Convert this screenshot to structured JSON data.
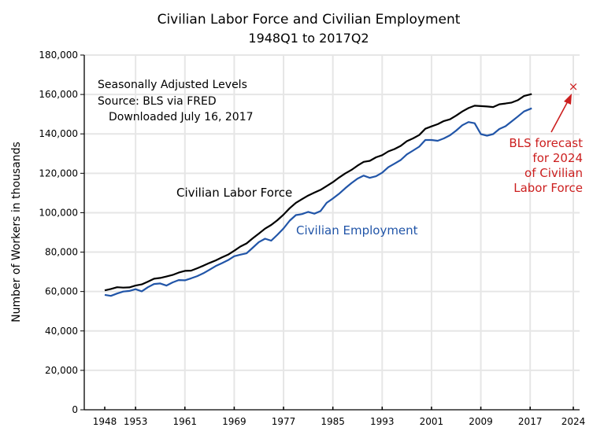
{
  "chart_data": {
    "type": "line",
    "title": "Civilian Labor Force and Civilian Employment",
    "subtitle": "1948Q1 to 2017Q2",
    "xlabel": "",
    "ylabel": "Number of Workers in thousands",
    "xlim": [
      1946,
      2025
    ],
    "ylim": [
      0,
      180000
    ],
    "grid": true,
    "yticks": [
      0,
      20000,
      40000,
      60000,
      80000,
      100000,
      120000,
      140000,
      160000,
      180000
    ],
    "ytick_labels": [
      "0",
      "20,000",
      "40,000",
      "60,000",
      "80,000",
      "100,000",
      "120,000",
      "140,000",
      "160,000",
      "180,000"
    ],
    "xticks": [
      1948,
      1953,
      1961,
      1969,
      1977,
      1985,
      1993,
      2001,
      2009,
      2017,
      2024
    ],
    "xtick_labels": [
      "1948",
      "1953",
      "1961",
      "1969",
      "1977",
      "1985",
      "1993",
      "2001",
      "2009",
      "2017",
      "2024"
    ],
    "notes": [
      "Seasonally Adjusted Levels",
      "Source:  BLS via FRED",
      "Downloaded July 16, 2017"
    ],
    "series": [
      {
        "name": "Civilian Labor Force",
        "color": "#000000",
        "x": [
          1948,
          1949,
          1950,
          1951,
          1952,
          1953,
          1954,
          1955,
          1956,
          1957,
          1958,
          1959,
          1960,
          1961,
          1962,
          1963,
          1964,
          1965,
          1966,
          1967,
          1968,
          1969,
          1970,
          1971,
          1972,
          1973,
          1974,
          1975,
          1976,
          1977,
          1978,
          1979,
          1980,
          1981,
          1982,
          1983,
          1984,
          1985,
          1986,
          1987,
          1988,
          1989,
          1990,
          1991,
          1992,
          1993,
          1994,
          1995,
          1996,
          1997,
          1998,
          1999,
          2000,
          2001,
          2002,
          2003,
          2004,
          2005,
          2006,
          2007,
          2008,
          2009,
          2010,
          2011,
          2012,
          2013,
          2014,
          2015,
          2016,
          2017.25
        ],
        "values": [
          60600,
          61300,
          62200,
          62000,
          62100,
          63000,
          63600,
          65000,
          66500,
          66900,
          67600,
          68400,
          69600,
          70500,
          70600,
          71800,
          73100,
          74500,
          75800,
          77300,
          78700,
          80700,
          82800,
          84400,
          87000,
          89400,
          91900,
          93800,
          96200,
          99000,
          102300,
          105000,
          106900,
          108700,
          110200,
          111600,
          113500,
          115500,
          117800,
          119900,
          121700,
          123900,
          125800,
          126300,
          128100,
          129200,
          131100,
          132300,
          133900,
          136300,
          137700,
          139400,
          142600,
          143800,
          144900,
          146500,
          147400,
          149300,
          151400,
          153100,
          154300,
          154100,
          153900,
          153600,
          155000,
          155400,
          155900,
          157100,
          159200,
          160200
        ]
      },
      {
        "name": "Civilian Employment",
        "color": "#2155a8",
        "x": [
          1948,
          1949,
          1950,
          1951,
          1952,
          1953,
          1954,
          1955,
          1956,
          1957,
          1958,
          1959,
          1960,
          1961,
          1962,
          1963,
          1964,
          1965,
          1966,
          1967,
          1968,
          1969,
          1970,
          1971,
          1972,
          1973,
          1974,
          1975,
          1976,
          1977,
          1978,
          1979,
          1980,
          1981,
          1982,
          1983,
          1984,
          1985,
          1986,
          1987,
          1988,
          1989,
          1990,
          1991,
          1992,
          1993,
          1994,
          1995,
          1996,
          1997,
          1998,
          1999,
          2000,
          2001,
          2002,
          2003,
          2004,
          2005,
          2006,
          2007,
          2008,
          2009,
          2010,
          2011,
          2012,
          2013,
          2014,
          2015,
          2016,
          2017.25
        ],
        "values": [
          58300,
          57800,
          59000,
          60000,
          60300,
          61200,
          60100,
          62200,
          63800,
          64100,
          63000,
          64600,
          65800,
          65700,
          66700,
          67800,
          69300,
          71100,
          72900,
          74400,
          75900,
          77900,
          78700,
          79400,
          82200,
          85100,
          86800,
          85800,
          88800,
          92000,
          96000,
          98800,
          99300,
          100400,
          99500,
          100800,
          105000,
          107200,
          109600,
          112400,
          115000,
          117300,
          118800,
          117700,
          118500,
          120300,
          123100,
          124900,
          126700,
          129600,
          131500,
          133500,
          136900,
          136900,
          136500,
          137700,
          139300,
          141700,
          144400,
          146000,
          145400,
          139900,
          139100,
          139900,
          142500,
          143900,
          146300,
          148800,
          151400,
          153000
        ]
      }
    ],
    "annotations": {
      "labor_force_label": "Civilian Labor Force",
      "employment_label": "Civilian Employment",
      "forecast": {
        "year": 2024,
        "value": 164000,
        "marker": "×",
        "lines": [
          "BLS forecast",
          "for 2024",
          "of Civilian",
          "Labor Force"
        ],
        "color": "#cc1f1f"
      }
    }
  }
}
